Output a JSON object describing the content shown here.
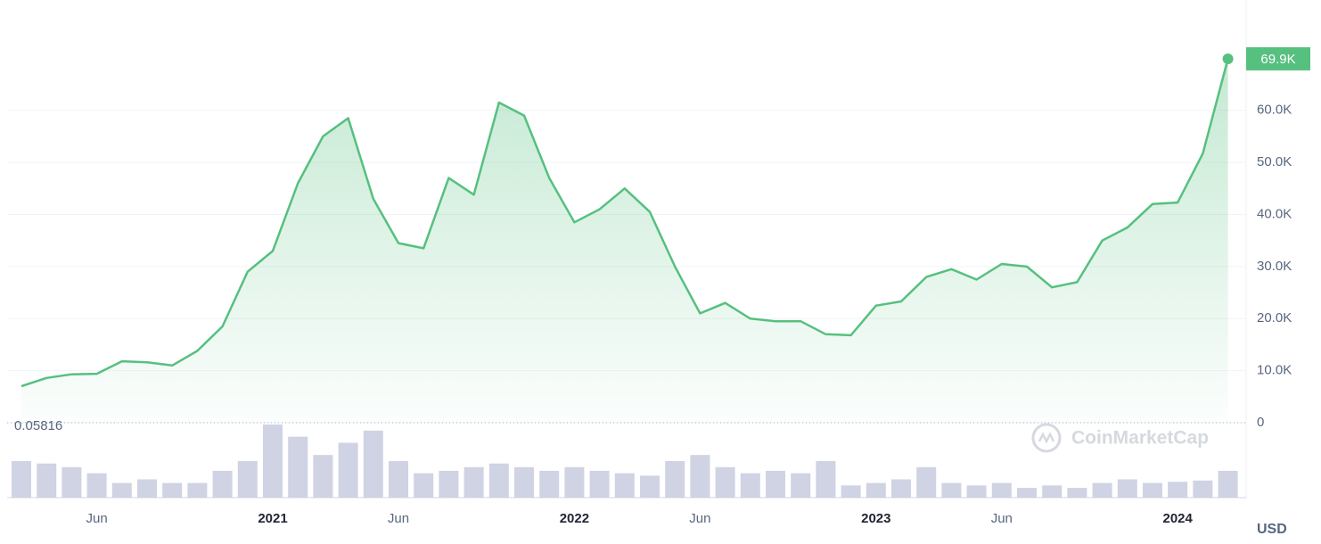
{
  "chart_data": {
    "type": "line",
    "x": [
      "2020-03",
      "2020-04",
      "2020-05",
      "2020-06",
      "2020-07",
      "2020-08",
      "2020-09",
      "2020-10",
      "2020-11",
      "2020-12",
      "2021-01",
      "2021-02",
      "2021-03",
      "2021-04",
      "2021-05",
      "2021-06",
      "2021-07",
      "2021-08",
      "2021-09",
      "2021-10",
      "2021-11",
      "2021-12",
      "2022-01",
      "2022-02",
      "2022-03",
      "2022-04",
      "2022-05",
      "2022-06",
      "2022-07",
      "2022-08",
      "2022-09",
      "2022-10",
      "2022-11",
      "2022-12",
      "2023-01",
      "2023-02",
      "2023-03",
      "2023-04",
      "2023-05",
      "2023-06",
      "2023-07",
      "2023-08",
      "2023-09",
      "2023-10",
      "2023-11",
      "2023-12",
      "2024-01",
      "2024-02",
      "2024-03"
    ],
    "series": [
      {
        "name": "Price",
        "color": "#56c07f",
        "values": [
          7000,
          8600,
          9300,
          9400,
          11800,
          11600,
          11000,
          13800,
          18500,
          29000,
          33000,
          46000,
          55000,
          58500,
          43000,
          34500,
          33500,
          47000,
          43800,
          61500,
          59000,
          47000,
          38500,
          41000,
          45000,
          40500,
          30000,
          21000,
          23000,
          20000,
          19500,
          19500,
          17000,
          16800,
          22500,
          23300,
          28000,
          29500,
          27500,
          30500,
          30000,
          26000,
          27000,
          35000,
          37500,
          42000,
          42300,
          51700,
          69900
        ],
        "value_labels": [
          null,
          null,
          null,
          null,
          null,
          null,
          null,
          null,
          null,
          null,
          null,
          null,
          null,
          null,
          null,
          null,
          null,
          null,
          null,
          null,
          null,
          null,
          null,
          null,
          null,
          null,
          null,
          null,
          null,
          null,
          null,
          null,
          null,
          null,
          null,
          null,
          null,
          null,
          null,
          null,
          null,
          null,
          null,
          null,
          null,
          null,
          null,
          null,
          "69.9K"
        ]
      },
      {
        "name": "Volume",
        "color": "#cfd3e3",
        "values": [
          30,
          28,
          25,
          20,
          12,
          15,
          12,
          12,
          22,
          30,
          60,
          50,
          35,
          45,
          55,
          30,
          20,
          22,
          25,
          28,
          25,
          22,
          25,
          22,
          20,
          18,
          30,
          35,
          25,
          20,
          22,
          20,
          30,
          10,
          12,
          15,
          25,
          12,
          10,
          12,
          8,
          10,
          8,
          12,
          15,
          12,
          13,
          14,
          22
        ]
      }
    ],
    "xticks": [
      {
        "value": "2020-06",
        "label": "Jun"
      },
      {
        "value": "2021-01",
        "label": "2021"
      },
      {
        "value": "2021-06",
        "label": "Jun"
      },
      {
        "value": "2022-01",
        "label": "2022"
      },
      {
        "value": "2022-06",
        "label": "Jun"
      },
      {
        "value": "2023-01",
        "label": "2023"
      },
      {
        "value": "2023-06",
        "label": "Jun"
      },
      {
        "value": "2024-01",
        "label": "2024"
      }
    ],
    "ylim": [
      0,
      80000
    ],
    "yticks": [
      0,
      {
        "value": 10000,
        "label": "10.0K"
      },
      {
        "value": 20000,
        "label": "20.0K"
      },
      {
        "value": 30000,
        "label": "30.0K"
      },
      {
        "value": 40000,
        "label": "40.0K"
      },
      {
        "value": 50000,
        "label": "50.0K"
      },
      {
        "value": 60000,
        "label": "60.0K"
      }
    ],
    "baseline_label": "0.05816",
    "currency": "USD",
    "watermark": "CoinMarketCap",
    "grid": true
  }
}
